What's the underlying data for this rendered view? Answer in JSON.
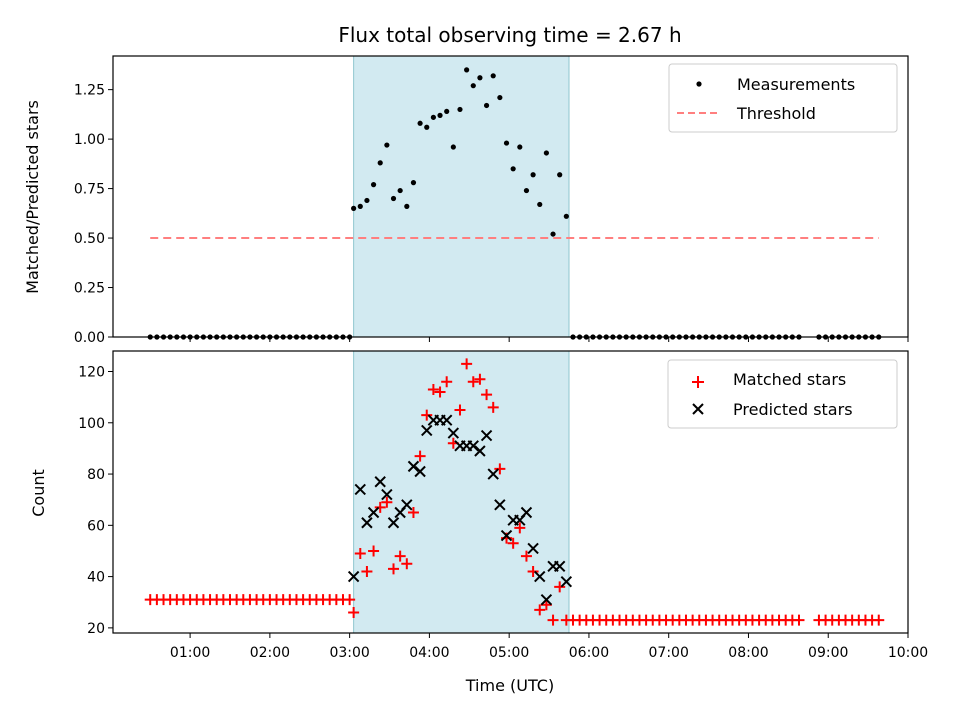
{
  "title": "Flux total observing time = 2.67 h",
  "time_ticks": [
    "01:00",
    "02:00",
    "03:00",
    "04:00",
    "05:00",
    "06:00",
    "07:00",
    "08:00",
    "09:00",
    "10:00"
  ],
  "colors": {
    "measurements": "#000000",
    "threshold": "#ff7f7f",
    "matched": "#ff0000",
    "predicted": "#000000",
    "window": "#add8e6"
  },
  "chart_data": [
    {
      "type": "scatter",
      "ylabel": "Matched/Predicted stars",
      "ylim": [
        0,
        1.42
      ],
      "yticks": [
        0.0,
        0.25,
        0.5,
        0.75,
        1.0,
        1.25
      ],
      "ytick_labels": [
        "0.00",
        "0.25",
        "0.50",
        "0.75",
        "1.00",
        "1.25"
      ],
      "xlim": [
        "00:02",
        "10:00"
      ],
      "legend_position": "top-right",
      "shaded_window": [
        "03:03",
        "05:45"
      ],
      "series": [
        {
          "name": "Measurements",
          "marker": "dot",
          "points": [
            [
              "00:30",
              0
            ],
            [
              "00:35",
              0
            ],
            [
              "00:40",
              0
            ],
            [
              "00:45",
              0
            ],
            [
              "00:50",
              0
            ],
            [
              "00:55",
              0
            ],
            [
              "01:00",
              0
            ],
            [
              "01:05",
              0
            ],
            [
              "01:10",
              0
            ],
            [
              "01:15",
              0
            ],
            [
              "01:20",
              0
            ],
            [
              "01:25",
              0
            ],
            [
              "01:30",
              0
            ],
            [
              "01:35",
              0
            ],
            [
              "01:40",
              0
            ],
            [
              "01:45",
              0
            ],
            [
              "01:50",
              0
            ],
            [
              "01:55",
              0
            ],
            [
              "02:00",
              0
            ],
            [
              "02:05",
              0
            ],
            [
              "02:10",
              0
            ],
            [
              "02:15",
              0
            ],
            [
              "02:20",
              0
            ],
            [
              "02:25",
              0
            ],
            [
              "02:30",
              0
            ],
            [
              "02:35",
              0
            ],
            [
              "02:40",
              0
            ],
            [
              "02:45",
              0
            ],
            [
              "02:50",
              0
            ],
            [
              "02:55",
              0
            ],
            [
              "03:00",
              0
            ],
            [
              "03:03",
              0.65
            ],
            [
              "03:08",
              0.66
            ],
            [
              "03:13",
              0.69
            ],
            [
              "03:18",
              0.77
            ],
            [
              "03:23",
              0.88
            ],
            [
              "03:28",
              0.97
            ],
            [
              "03:33",
              0.7
            ],
            [
              "03:38",
              0.74
            ],
            [
              "03:43",
              0.66
            ],
            [
              "03:48",
              0.78
            ],
            [
              "03:53",
              1.08
            ],
            [
              "03:58",
              1.06
            ],
            [
              "04:03",
              1.11
            ],
            [
              "04:08",
              1.12
            ],
            [
              "04:13",
              1.14
            ],
            [
              "04:18",
              0.96
            ],
            [
              "04:23",
              1.15
            ],
            [
              "04:28",
              1.35
            ],
            [
              "04:33",
              1.27
            ],
            [
              "04:38",
              1.31
            ],
            [
              "04:43",
              1.17
            ],
            [
              "04:48",
              1.32
            ],
            [
              "04:53",
              1.21
            ],
            [
              "04:58",
              0.98
            ],
            [
              "05:03",
              0.85
            ],
            [
              "05:08",
              0.96
            ],
            [
              "05:13",
              0.74
            ],
            [
              "05:18",
              0.82
            ],
            [
              "05:23",
              0.67
            ],
            [
              "05:28",
              0.93
            ],
            [
              "05:33",
              0.52
            ],
            [
              "05:38",
              0.82
            ],
            [
              "05:43",
              0.61
            ],
            [
              "05:48",
              0
            ],
            [
              "05:53",
              0
            ],
            [
              "05:58",
              0
            ],
            [
              "06:03",
              0
            ],
            [
              "06:08",
              0
            ],
            [
              "06:13",
              0
            ],
            [
              "06:18",
              0
            ],
            [
              "06:23",
              0
            ],
            [
              "06:28",
              0
            ],
            [
              "06:33",
              0
            ],
            [
              "06:38",
              0
            ],
            [
              "06:43",
              0
            ],
            [
              "06:48",
              0
            ],
            [
              "06:53",
              0
            ],
            [
              "06:58",
              0
            ],
            [
              "07:03",
              0
            ],
            [
              "07:08",
              0
            ],
            [
              "07:13",
              0
            ],
            [
              "07:18",
              0
            ],
            [
              "07:23",
              0
            ],
            [
              "07:28",
              0
            ],
            [
              "07:33",
              0
            ],
            [
              "07:38",
              0
            ],
            [
              "07:43",
              0
            ],
            [
              "07:48",
              0
            ],
            [
              "07:53",
              0
            ],
            [
              "07:58",
              0
            ],
            [
              "08:03",
              0
            ],
            [
              "08:08",
              0
            ],
            [
              "08:13",
              0
            ],
            [
              "08:18",
              0
            ],
            [
              "08:23",
              0
            ],
            [
              "08:28",
              0
            ],
            [
              "08:33",
              0
            ],
            [
              "08:38",
              0
            ],
            [
              "08:53",
              0
            ],
            [
              "08:58",
              0
            ],
            [
              "09:03",
              0
            ],
            [
              "09:08",
              0
            ],
            [
              "09:13",
              0
            ],
            [
              "09:18",
              0
            ],
            [
              "09:23",
              0
            ],
            [
              "09:28",
              0
            ],
            [
              "09:33",
              0
            ],
            [
              "09:38",
              0
            ]
          ]
        },
        {
          "name": "Threshold",
          "marker": "dashed-line",
          "points": [
            [
              "00:30",
              0.5
            ],
            [
              "09:38",
              0.5
            ]
          ]
        }
      ]
    },
    {
      "type": "scatter",
      "ylabel": "Count",
      "xlabel": "Time (UTC)",
      "ylim": [
        18,
        128
      ],
      "yticks": [
        20,
        40,
        60,
        80,
        100,
        120
      ],
      "ytick_labels": [
        "20",
        "40",
        "60",
        "80",
        "100",
        "120"
      ],
      "xlim": [
        "00:02",
        "10:00"
      ],
      "legend_position": "top-right",
      "shaded_window": [
        "03:03",
        "05:45"
      ],
      "series": [
        {
          "name": "Matched stars",
          "marker": "plus",
          "points": [
            [
              "00:30",
              31
            ],
            [
              "00:35",
              31
            ],
            [
              "00:40",
              31
            ],
            [
              "00:45",
              31
            ],
            [
              "00:50",
              31
            ],
            [
              "00:55",
              31
            ],
            [
              "01:00",
              31
            ],
            [
              "01:05",
              31
            ],
            [
              "01:10",
              31
            ],
            [
              "01:15",
              31
            ],
            [
              "01:20",
              31
            ],
            [
              "01:25",
              31
            ],
            [
              "01:30",
              31
            ],
            [
              "01:35",
              31
            ],
            [
              "01:40",
              31
            ],
            [
              "01:45",
              31
            ],
            [
              "01:50",
              31
            ],
            [
              "01:55",
              31
            ],
            [
              "02:00",
              31
            ],
            [
              "02:05",
              31
            ],
            [
              "02:10",
              31
            ],
            [
              "02:15",
              31
            ],
            [
              "02:20",
              31
            ],
            [
              "02:25",
              31
            ],
            [
              "02:30",
              31
            ],
            [
              "02:35",
              31
            ],
            [
              "02:40",
              31
            ],
            [
              "02:45",
              31
            ],
            [
              "02:50",
              31
            ],
            [
              "02:55",
              31
            ],
            [
              "03:00",
              31
            ],
            [
              "03:03",
              26
            ],
            [
              "03:08",
              49
            ],
            [
              "03:13",
              42
            ],
            [
              "03:18",
              50
            ],
            [
              "03:23",
              67
            ],
            [
              "03:28",
              69
            ],
            [
              "03:33",
              43
            ],
            [
              "03:38",
              48
            ],
            [
              "03:43",
              45
            ],
            [
              "03:48",
              65
            ],
            [
              "03:53",
              87
            ],
            [
              "03:58",
              103
            ],
            [
              "04:03",
              113
            ],
            [
              "04:08",
              112
            ],
            [
              "04:13",
              116
            ],
            [
              "04:18",
              92
            ],
            [
              "04:23",
              105
            ],
            [
              "04:28",
              123
            ],
            [
              "04:33",
              116
            ],
            [
              "04:38",
              117
            ],
            [
              "04:43",
              111
            ],
            [
              "04:48",
              106
            ],
            [
              "04:53",
              82
            ],
            [
              "04:58",
              55
            ],
            [
              "05:03",
              53
            ],
            [
              "05:08",
              59
            ],
            [
              "05:13",
              48
            ],
            [
              "05:18",
              42
            ],
            [
              "05:23",
              27
            ],
            [
              "05:28",
              29
            ],
            [
              "05:33",
              23
            ],
            [
              "05:38",
              36
            ],
            [
              "05:43",
              23
            ],
            [
              "05:48",
              23
            ],
            [
              "05:53",
              23
            ],
            [
              "05:58",
              23
            ],
            [
              "06:03",
              23
            ],
            [
              "06:08",
              23
            ],
            [
              "06:13",
              23
            ],
            [
              "06:18",
              23
            ],
            [
              "06:23",
              23
            ],
            [
              "06:28",
              23
            ],
            [
              "06:33",
              23
            ],
            [
              "06:38",
              23
            ],
            [
              "06:43",
              23
            ],
            [
              "06:48",
              23
            ],
            [
              "06:53",
              23
            ],
            [
              "06:58",
              23
            ],
            [
              "07:03",
              23
            ],
            [
              "07:08",
              23
            ],
            [
              "07:13",
              23
            ],
            [
              "07:18",
              23
            ],
            [
              "07:23",
              23
            ],
            [
              "07:28",
              23
            ],
            [
              "07:33",
              23
            ],
            [
              "07:38",
              23
            ],
            [
              "07:43",
              23
            ],
            [
              "07:48",
              23
            ],
            [
              "07:53",
              23
            ],
            [
              "07:58",
              23
            ],
            [
              "08:03",
              23
            ],
            [
              "08:08",
              23
            ],
            [
              "08:13",
              23
            ],
            [
              "08:18",
              23
            ],
            [
              "08:23",
              23
            ],
            [
              "08:28",
              23
            ],
            [
              "08:33",
              23
            ],
            [
              "08:38",
              23
            ],
            [
              "08:53",
              23
            ],
            [
              "08:58",
              23
            ],
            [
              "09:03",
              23
            ],
            [
              "09:08",
              23
            ],
            [
              "09:13",
              23
            ],
            [
              "09:18",
              23
            ],
            [
              "09:23",
              23
            ],
            [
              "09:28",
              23
            ],
            [
              "09:33",
              23
            ],
            [
              "09:38",
              23
            ]
          ]
        },
        {
          "name": "Predicted stars",
          "marker": "cross",
          "points": [
            [
              "03:03",
              40
            ],
            [
              "03:08",
              74
            ],
            [
              "03:13",
              61
            ],
            [
              "03:18",
              65
            ],
            [
              "03:23",
              77
            ],
            [
              "03:28",
              72
            ],
            [
              "03:33",
              61
            ],
            [
              "03:38",
              65
            ],
            [
              "03:43",
              68
            ],
            [
              "03:48",
              83
            ],
            [
              "03:53",
              81
            ],
            [
              "03:58",
              97
            ],
            [
              "04:03",
              101
            ],
            [
              "04:08",
              101
            ],
            [
              "04:13",
              101
            ],
            [
              "04:18",
              96
            ],
            [
              "04:23",
              91
            ],
            [
              "04:28",
              91
            ],
            [
              "04:33",
              91
            ],
            [
              "04:38",
              89
            ],
            [
              "04:43",
              95
            ],
            [
              "04:48",
              80
            ],
            [
              "04:53",
              68
            ],
            [
              "04:58",
              56
            ],
            [
              "05:03",
              62
            ],
            [
              "05:08",
              62
            ],
            [
              "05:13",
              65
            ],
            [
              "05:18",
              51
            ],
            [
              "05:23",
              40
            ],
            [
              "05:28",
              31
            ],
            [
              "05:33",
              44
            ],
            [
              "05:38",
              44
            ],
            [
              "05:43",
              38
            ]
          ]
        }
      ]
    }
  ]
}
